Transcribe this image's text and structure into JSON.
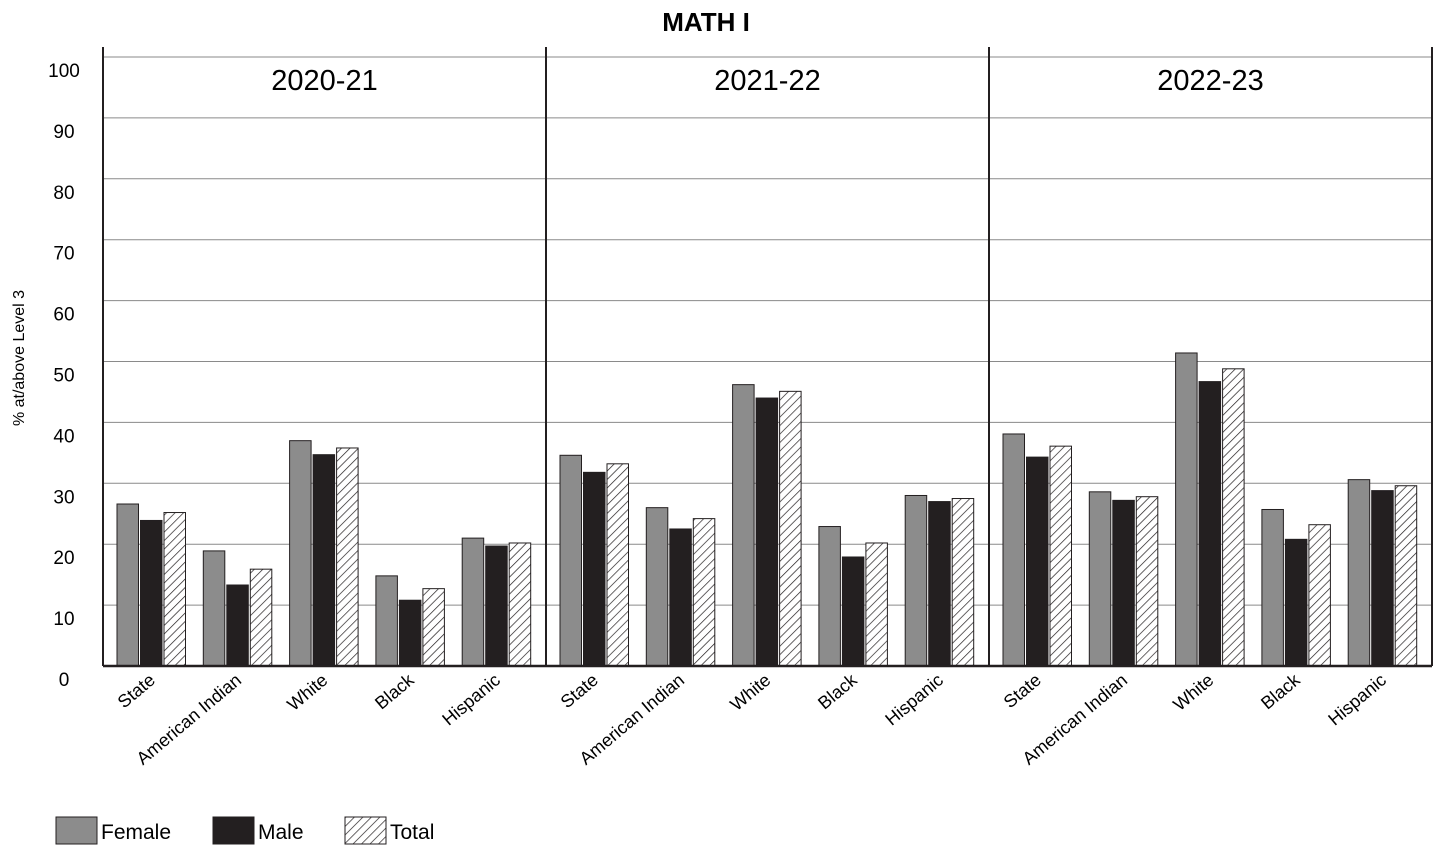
{
  "chart_data": {
    "type": "bar",
    "title": "MATH I",
    "ylabel": "% at/above Level 3",
    "xlabel": "",
    "ylim": [
      0,
      100
    ],
    "yticks": [
      "0",
      "10",
      "20",
      "30",
      "40",
      "50",
      "60",
      "70",
      "80",
      "90",
      "100"
    ],
    "grid": true,
    "legend_position": "bottom-left",
    "categories": [
      "State",
      "American Indian",
      "White",
      "Black",
      "Hispanic"
    ],
    "series_names": [
      "Female",
      "Male",
      "Total"
    ],
    "series_colors": {
      "Female": "#8c8c8c",
      "Male": "#231f20",
      "Total": "hatched"
    },
    "panels": [
      {
        "label": "2020-21",
        "series": [
          {
            "name": "Female",
            "values": [
              26.6,
              18.9,
              37.0,
              14.8,
              21.0
            ]
          },
          {
            "name": "Male",
            "values": [
              23.9,
              13.3,
              34.7,
              10.8,
              19.7
            ]
          },
          {
            "name": "Total",
            "values": [
              25.2,
              15.9,
              35.8,
              12.7,
              20.2
            ]
          }
        ]
      },
      {
        "label": "2021-22",
        "series": [
          {
            "name": "Female",
            "values": [
              34.6,
              26.0,
              46.2,
              22.9,
              28.0
            ]
          },
          {
            "name": "Male",
            "values": [
              31.8,
              22.5,
              44.0,
              17.9,
              27.0
            ]
          },
          {
            "name": "Total",
            "values": [
              33.2,
              24.2,
              45.1,
              20.2,
              27.5
            ]
          }
        ]
      },
      {
        "label": "2022-23",
        "series": [
          {
            "name": "Female",
            "values": [
              38.1,
              28.6,
              51.4,
              25.7,
              30.6
            ]
          },
          {
            "name": "Male",
            "values": [
              34.3,
              27.2,
              46.7,
              20.8,
              28.8
            ]
          },
          {
            "name": "Total",
            "values": [
              36.1,
              27.8,
              48.8,
              23.2,
              29.6
            ]
          }
        ]
      }
    ]
  }
}
